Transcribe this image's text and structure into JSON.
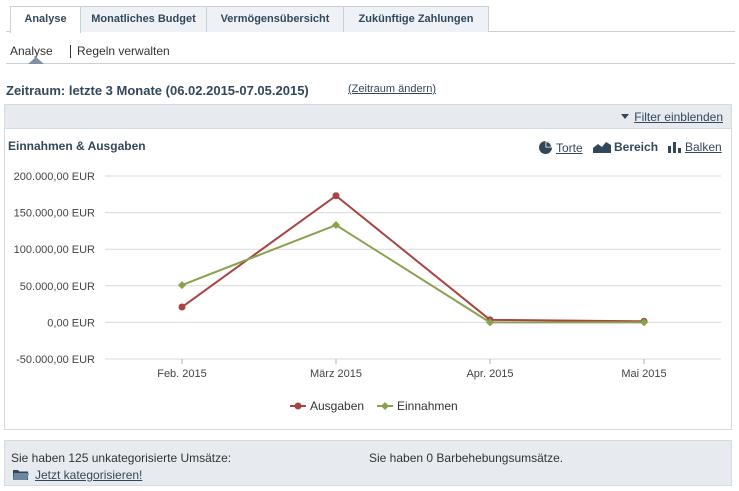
{
  "tabs": [
    {
      "label": "Analyse",
      "active": true
    },
    {
      "label": "Monatliches Budget",
      "active": false
    },
    {
      "label": "Vermögensübersicht",
      "active": false
    },
    {
      "label": "Zukünftige Zahlungen",
      "active": false
    }
  ],
  "subtabs": [
    {
      "label": "Analyse",
      "active": true
    },
    {
      "label": "Regeln verwalten",
      "active": false
    }
  ],
  "period": {
    "label": "Zeitraum: letzte 3 Monate (06.02.2015-07.05.2015)",
    "change_link": "(Zeitraum ändern)"
  },
  "filter": {
    "label": "Filter einblenden"
  },
  "chart_header": {
    "title": "Einnahmen & Ausgaben",
    "switches": [
      {
        "label": "Torte",
        "icon": "pie-chart-icon"
      },
      {
        "label": "Bereich",
        "icon": "area-chart-icon"
      },
      {
        "label": "Balken",
        "icon": "bar-chart-icon"
      }
    ]
  },
  "chart_data": {
    "type": "line",
    "categories": [
      "Feb. 2015",
      "März 2015",
      "Apr. 2015",
      "Mai 2015"
    ],
    "series": [
      {
        "name": "Ausgaben",
        "color": "#a94442",
        "values": [
          21000,
          173000,
          3500,
          1500
        ]
      },
      {
        "name": "Einnahmen",
        "color": "#8aa14f",
        "values": [
          51000,
          133000,
          0,
          0
        ]
      }
    ],
    "y_ticks": [
      "200.000,00 EUR",
      "150.000,00 EUR",
      "100.000,00 EUR",
      "50.000,00 EUR",
      "0,00 EUR",
      "-50.000,00 EUR"
    ],
    "ylim": [
      -50000,
      200000
    ],
    "grid": true,
    "legend": "bottom-center"
  },
  "footer": {
    "uncategorized": "Sie haben 125 unkategorisierte Umsätze:",
    "categorize_link": "Jetzt kategorisieren!",
    "cash": "Sie haben 0 Barbehebungsumsätze."
  }
}
